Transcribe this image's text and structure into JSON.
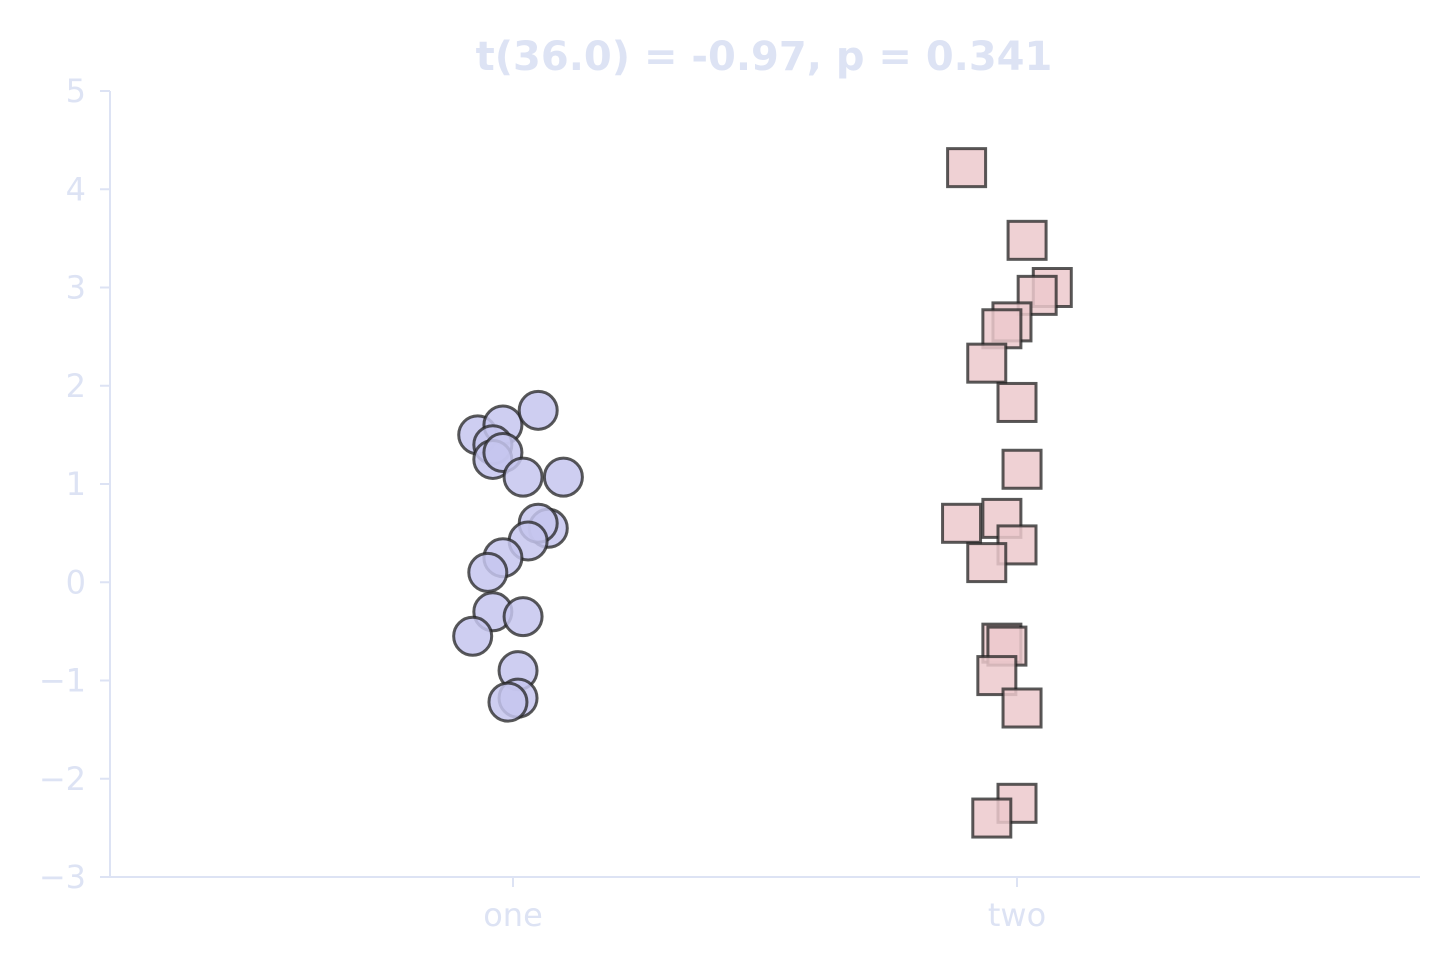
{
  "chart_data": {
    "type": "scatter",
    "title": "t(36.0) = -0.97, p = 0.341",
    "xlabel": "",
    "ylabel": "",
    "categories": [
      "one",
      "two"
    ],
    "ylim": [
      -3,
      5
    ],
    "yticks": [
      -3,
      -2,
      -1,
      0,
      1,
      2,
      3,
      4,
      5
    ],
    "ytick_labels": [
      "−3",
      "−2",
      "−1",
      "0",
      "1",
      "2",
      "3",
      "4",
      "5"
    ],
    "grid": false,
    "colors": {
      "axis": "#dde3f4",
      "text": "#dde3f4",
      "marker_edge": "#222222",
      "one": "#c6c6ee",
      "two": "#ecc9cc"
    },
    "series": [
      {
        "category": "one",
        "marker": "circle",
        "points": [
          {
            "x": -0.07,
            "y": 1.5
          },
          {
            "x": -0.02,
            "y": 1.6
          },
          {
            "x": 0.05,
            "y": 1.75
          },
          {
            "x": -0.04,
            "y": 1.4
          },
          {
            "x": -0.04,
            "y": 1.25
          },
          {
            "x": -0.02,
            "y": 1.32
          },
          {
            "x": 0.02,
            "y": 1.07
          },
          {
            "x": 0.1,
            "y": 1.07
          },
          {
            "x": 0.07,
            "y": 0.55
          },
          {
            "x": 0.05,
            "y": 0.6
          },
          {
            "x": 0.03,
            "y": 0.42
          },
          {
            "x": -0.02,
            "y": 0.25
          },
          {
            "x": -0.05,
            "y": 0.1
          },
          {
            "x": -0.04,
            "y": -0.3
          },
          {
            "x": 0.02,
            "y": -0.35
          },
          {
            "x": -0.08,
            "y": -0.55
          },
          {
            "x": 0.01,
            "y": -0.9
          },
          {
            "x": 0.01,
            "y": -1.18
          },
          {
            "x": -0.01,
            "y": -1.22
          }
        ]
      },
      {
        "category": "two",
        "marker": "square",
        "points": [
          {
            "x": -0.1,
            "y": 4.22
          },
          {
            "x": 0.02,
            "y": 3.48
          },
          {
            "x": 0.07,
            "y": 3.0
          },
          {
            "x": 0.04,
            "y": 2.92
          },
          {
            "x": -0.01,
            "y": 2.65
          },
          {
            "x": -0.03,
            "y": 2.58
          },
          {
            "x": -0.06,
            "y": 2.23
          },
          {
            "x": 0.0,
            "y": 1.83
          },
          {
            "x": 0.01,
            "y": 1.15
          },
          {
            "x": -0.11,
            "y": 0.6
          },
          {
            "x": -0.03,
            "y": 0.65
          },
          {
            "x": 0.0,
            "y": 0.38
          },
          {
            "x": -0.06,
            "y": 0.2
          },
          {
            "x": -0.03,
            "y": -0.62
          },
          {
            "x": -0.02,
            "y": -0.65
          },
          {
            "x": -0.04,
            "y": -0.95
          },
          {
            "x": 0.01,
            "y": -1.28
          },
          {
            "x": 0.0,
            "y": -2.25
          },
          {
            "x": -0.05,
            "y": -2.4
          }
        ]
      }
    ]
  }
}
